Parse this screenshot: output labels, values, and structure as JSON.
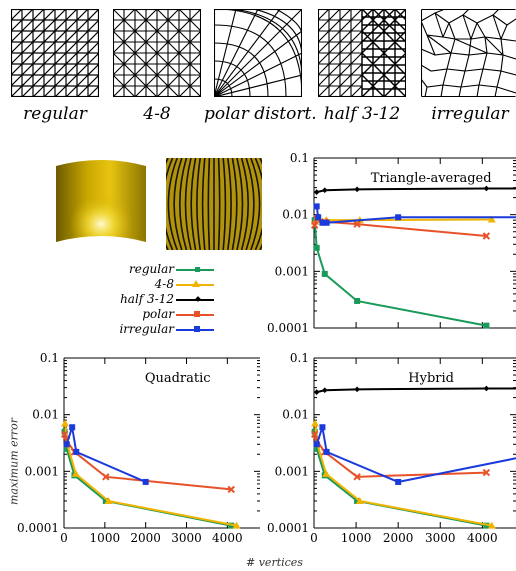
{
  "mesh_labels": [
    "regular",
    "4-8",
    "polar distort.",
    "half 3-12",
    "irregular"
  ],
  "axis_titles": {
    "y": "maximum error",
    "x": "# vertices"
  },
  "legend": [
    {
      "name": "regular",
      "color": "#1a9a5a",
      "marker": "square"
    },
    {
      "name": "4-8",
      "color": "#f0b400",
      "marker": "triangle"
    },
    {
      "name": "half 3-12",
      "color": "#000000",
      "marker": "diamond"
    },
    {
      "name": "polar",
      "color": "#e8522a",
      "marker": "x"
    },
    {
      "name": "irregular",
      "color": "#1a3adc",
      "marker": "square"
    }
  ],
  "chart_data": [
    {
      "type": "line",
      "title": "Triangle-averaged",
      "ylog": true,
      "ylim": [
        0.0001,
        0.1
      ],
      "xlim": [
        0,
        4800
      ],
      "xticks": [
        0,
        1000,
        2000,
        3000,
        4000
      ],
      "yticks": [
        0.0001,
        0.001,
        0.01,
        0.1
      ],
      "ytick_labels": [
        "0.0001",
        "0.001",
        "0.01",
        "0.1"
      ],
      "series": [
        {
          "name": "half 3-12",
          "x": [
            64,
            256,
            1024,
            4096,
            4800
          ],
          "y": [
            0.025,
            0.027,
            0.028,
            0.029,
            0.029
          ]
        },
        {
          "name": "regular",
          "x": [
            16,
            64,
            256,
            1024,
            4096
          ],
          "y": [
            0.008,
            0.0026,
            0.0009,
            0.0003,
            0.00011
          ]
        },
        {
          "name": "4-8",
          "x": [
            25,
            81,
            289,
            1089,
            4225
          ],
          "y": [
            0.0075,
            0.008,
            0.008,
            0.008,
            0.0082
          ]
        },
        {
          "name": "polar",
          "x": [
            16,
            64,
            256,
            1024,
            4096
          ],
          "y": [
            0.0065,
            0.0085,
            0.0075,
            0.0068,
            0.0042
          ]
        },
        {
          "name": "irregular",
          "x": [
            64,
            100,
            200,
            300,
            2000,
            4800
          ],
          "y": [
            0.014,
            0.009,
            0.0072,
            0.0072,
            0.009,
            0.009
          ]
        }
      ]
    },
    {
      "type": "line",
      "title": "Quadratic",
      "ylog": true,
      "ylim": [
        0.0001,
        0.1
      ],
      "xlim": [
        0,
        4800
      ],
      "xticks": [
        0,
        1000,
        2000,
        3000,
        4000
      ],
      "xtick_labels": [
        "0",
        "1000",
        "2000",
        "3000",
        "4000"
      ],
      "yticks": [
        0.0001,
        0.001,
        0.01,
        0.1
      ],
      "ytick_labels": [
        "0.0001",
        "0.001",
        "0.01",
        "0.1"
      ],
      "series": [
        {
          "name": "regular",
          "x": [
            16,
            64,
            256,
            1024,
            4096
          ],
          "y": [
            0.005,
            0.0025,
            0.00085,
            0.0003,
            0.00011
          ]
        },
        {
          "name": "4-8",
          "x": [
            25,
            81,
            289,
            1089,
            4225
          ],
          "y": [
            0.007,
            0.003,
            0.0009,
            0.0003,
            0.00011
          ]
        },
        {
          "name": "polar",
          "x": [
            16,
            64,
            256,
            1024,
            4096
          ],
          "y": [
            0.0045,
            0.0035,
            0.0022,
            0.0008,
            0.00048
          ]
        },
        {
          "name": "irregular",
          "x": [
            64,
            200,
            300,
            2000
          ],
          "y": [
            0.003,
            0.006,
            0.0022,
            0.00065
          ]
        }
      ]
    },
    {
      "type": "line",
      "title": "Hybrid",
      "ylog": true,
      "ylim": [
        0.0001,
        0.1
      ],
      "xlim": [
        0,
        4800
      ],
      "xticks": [
        0,
        1000,
        2000,
        3000,
        4000
      ],
      "xtick_labels": [
        "0",
        "1000",
        "2000",
        "3000",
        "4000"
      ],
      "yticks": [
        0.0001,
        0.001,
        0.01,
        0.1
      ],
      "ytick_labels": [
        "0.0001",
        "0.001",
        "0.01",
        "0.1"
      ],
      "series": [
        {
          "name": "half 3-12",
          "x": [
            64,
            256,
            1024,
            4096,
            4800
          ],
          "y": [
            0.025,
            0.027,
            0.028,
            0.029,
            0.029
          ]
        },
        {
          "name": "regular",
          "x": [
            16,
            64,
            256,
            1024,
            4096
          ],
          "y": [
            0.005,
            0.0025,
            0.00085,
            0.0003,
            0.00011
          ]
        },
        {
          "name": "4-8",
          "x": [
            25,
            81,
            289,
            1089,
            4225
          ],
          "y": [
            0.007,
            0.003,
            0.0009,
            0.0003,
            0.00011
          ]
        },
        {
          "name": "polar",
          "x": [
            16,
            64,
            256,
            1024,
            4096
          ],
          "y": [
            0.0045,
            0.0035,
            0.0022,
            0.0008,
            0.00095
          ]
        },
        {
          "name": "irregular",
          "x": [
            64,
            200,
            300,
            2000,
            4800
          ],
          "y": [
            0.003,
            0.006,
            0.0022,
            0.00065,
            0.0017
          ]
        }
      ]
    }
  ]
}
